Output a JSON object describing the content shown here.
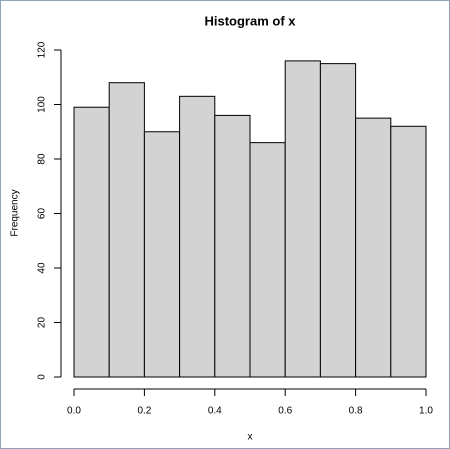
{
  "chart_data": {
    "type": "histogram",
    "title": "Histogram of x",
    "xlabel": "x",
    "ylabel": "Frequency",
    "bins": [
      0,
      0.1,
      0.2,
      0.3,
      0.4,
      0.5,
      0.6,
      0.7,
      0.8,
      0.9,
      1
    ],
    "counts": [
      99,
      108,
      90,
      103,
      96,
      86,
      116,
      115,
      95,
      92
    ],
    "color": "#d3d3d3",
    "xlim": [
      0,
      1
    ],
    "xticks": [
      {
        "value": 0,
        "label": "0.0"
      },
      0.2,
      0.4,
      0.6,
      0.8,
      {
        "value": 1,
        "label": "1.0"
      }
    ],
    "ylim": [
      0,
      120
    ],
    "yticks": [
      0,
      20,
      40,
      60,
      80,
      100,
      120
    ]
  }
}
